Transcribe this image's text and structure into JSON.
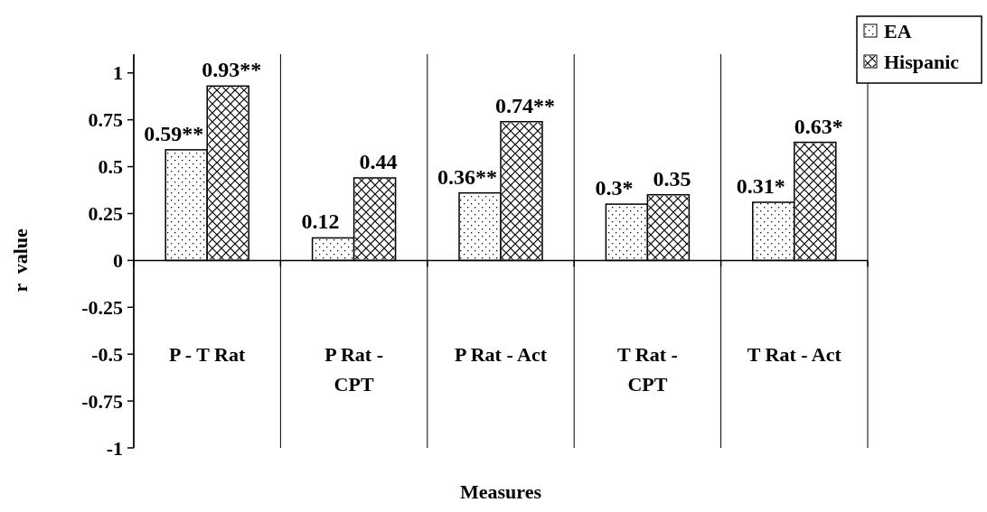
{
  "chart_data": {
    "type": "bar",
    "xlabel": "Measures",
    "ylabel": "r  value",
    "categories": [
      "P - T Rat",
      "P Rat - CPT",
      "P Rat - Act",
      "T Rat - CPT",
      "T Rat - Act"
    ],
    "series": [
      {
        "name": "EA",
        "color": "#ffffff",
        "values": [
          0.59,
          0.12,
          0.36,
          0.3,
          0.31
        ],
        "value_labels": [
          "0.59**",
          "0.12",
          "0.36**",
          "0.3*",
          "0.31*"
        ]
      },
      {
        "name": "Hispanic",
        "color": "#ffffff",
        "values": [
          0.93,
          0.44,
          0.74,
          0.35,
          0.63
        ],
        "value_labels": [
          "0.93**",
          "0.44",
          "0.74**",
          "0.35",
          "0.63*"
        ]
      }
    ],
    "ylim": [
      -1,
      1.1
    ],
    "yticks": [
      -1,
      -0.75,
      -0.5,
      -0.25,
      0,
      0.25,
      0.5,
      0.75,
      1
    ],
    "grid": "x",
    "legend": "top right"
  }
}
